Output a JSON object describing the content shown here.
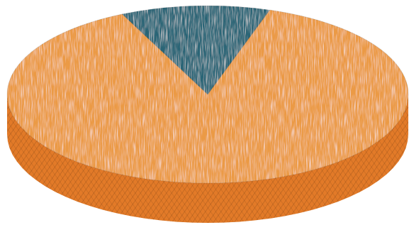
{
  "chart_data": {
    "type": "pie",
    "style": "3d-hand-drawn",
    "title": "",
    "legend": "none",
    "slices": [
      {
        "label": "",
        "value": 88,
        "color": "#eb9a45",
        "side_color": "#e27a28"
      },
      {
        "label": "",
        "value": 12,
        "color": "#2c6576",
        "side_color": "#1d4a58"
      }
    ]
  }
}
